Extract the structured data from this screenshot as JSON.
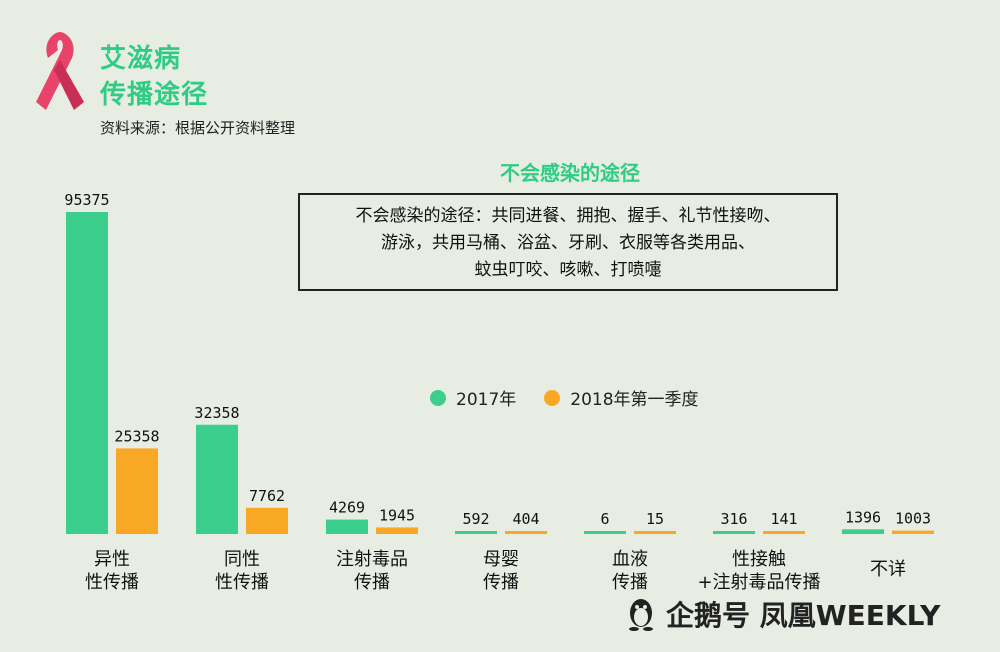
{
  "header": {
    "title_line1": "艾滋病",
    "title_line2": "传播途径",
    "source": "资料来源：根据公开资料整理"
  },
  "note": {
    "heading": "不会感染的途径",
    "line1": "不会感染的途径：共同进餐、拥抱、握手、礼节性接吻、",
    "line2": "游泳，共用马桶、浴盆、牙刷、衣服等各类用品、",
    "line3": "蚊虫叮咬、咳嗽、打喷嚏"
  },
  "watermark": "企鹅号 凤凰WEEKLY",
  "colors": {
    "background": "#e8ede4",
    "s2017": "#3cce8c",
    "s2018": "#f9a826",
    "title": "#2fcd84",
    "ribbon": "#e8446a"
  },
  "chart_data": {
    "type": "bar",
    "categories": [
      [
        "异性",
        "性传播"
      ],
      [
        "同性",
        "性传播"
      ],
      [
        "注射毒品",
        "传播"
      ],
      [
        "母婴",
        "传播"
      ],
      [
        "血液",
        "传播"
      ],
      [
        "性接触",
        "+注射毒品传播"
      ],
      [
        "不详"
      ]
    ],
    "series": [
      {
        "name": "2017年",
        "values": [
          95375,
          32358,
          4269,
          592,
          6,
          316,
          1396
        ]
      },
      {
        "name": "2018年第一季度",
        "values": [
          25358,
          7762,
          1945,
          404,
          15,
          141,
          1003
        ]
      }
    ],
    "ylim": [
      0,
      95375
    ]
  }
}
